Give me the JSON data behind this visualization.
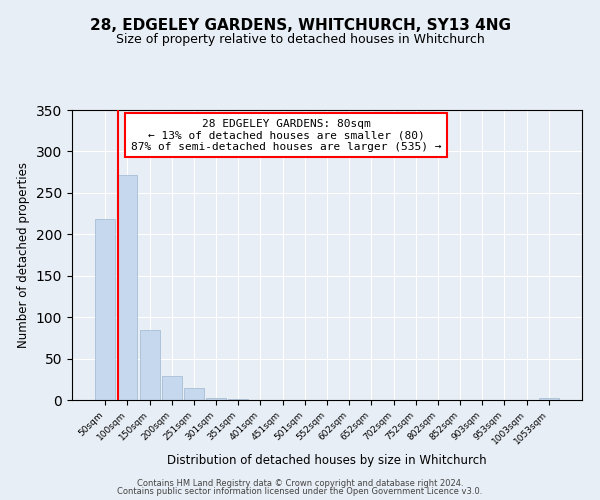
{
  "title": "28, EDGELEY GARDENS, WHITCHURCH, SY13 4NG",
  "subtitle": "Size of property relative to detached houses in Whitchurch",
  "xlabel": "Distribution of detached houses by size in Whitchurch",
  "ylabel": "Number of detached properties",
  "bar_labels": [
    "50sqm",
    "100sqm",
    "150sqm",
    "200sqm",
    "251sqm",
    "301sqm",
    "351sqm",
    "401sqm",
    "451sqm",
    "501sqm",
    "552sqm",
    "602sqm",
    "652sqm",
    "702sqm",
    "752sqm",
    "802sqm",
    "852sqm",
    "903sqm",
    "953sqm",
    "1003sqm",
    "1053sqm"
  ],
  "bar_values": [
    218,
    271,
    84,
    29,
    14,
    3,
    1,
    0,
    0,
    0,
    0,
    0,
    0,
    0,
    0,
    0,
    0,
    0,
    0,
    0,
    3
  ],
  "bar_color": "#c5d8ed",
  "bar_edge_color": "#a0b8d0",
  "annotation_line1": "28 EDGELEY GARDENS: 80sqm",
  "annotation_line2": "← 13% of detached houses are smaller (80)",
  "annotation_line3": "87% of semi-detached houses are larger (535) →",
  "red_line_x": 0.6,
  "ylim": [
    0,
    350
  ],
  "yticks": [
    0,
    50,
    100,
    150,
    200,
    250,
    300,
    350
  ],
  "bg_color": "#e8eef5",
  "plot_bg_color": "#e8eef5",
  "footer_line1": "Contains HM Land Registry data © Crown copyright and database right 2024.",
  "footer_line2": "Contains public sector information licensed under the Open Government Licence v3.0."
}
